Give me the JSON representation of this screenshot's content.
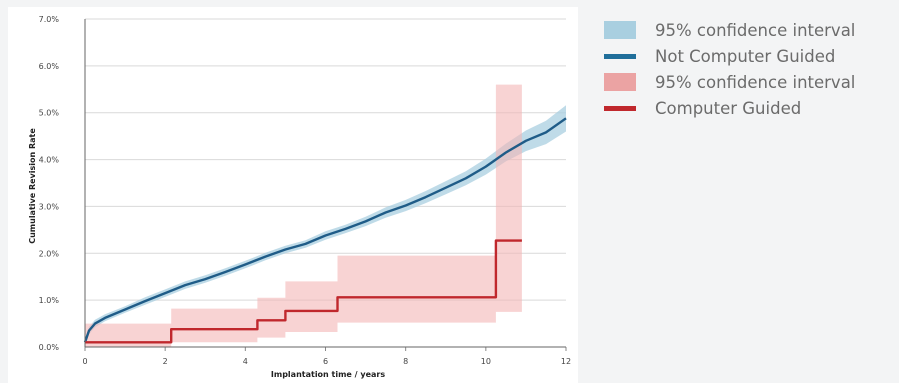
{
  "chart_data": {
    "type": "line",
    "title": "",
    "xlabel": "Implantation time  / years",
    "ylabel": "Cumulative Revision Rate",
    "xlim": [
      0,
      12
    ],
    "ylim": [
      0,
      7
    ],
    "x_ticks": [
      0,
      2,
      4,
      6,
      8,
      10,
      12
    ],
    "x_tick_labels": [
      "0",
      "2",
      "4",
      "6",
      "8",
      "10",
      "12"
    ],
    "y_ticks": [
      0,
      1,
      2,
      3,
      4,
      5,
      6,
      7
    ],
    "y_tick_labels": [
      "0.0%",
      "1.0%",
      "2.0%",
      "3.0%",
      "4.0%",
      "5.0%",
      "6.0%",
      "7.0%"
    ],
    "grid": "horizontal",
    "legend_position": "right",
    "series": [
      {
        "name": "Not Computer Guided",
        "kind": "line",
        "color": "#1f5c88",
        "x": [
          0,
          0.1,
          0.25,
          0.5,
          1,
          1.5,
          2,
          2.5,
          3,
          3.5,
          4,
          4.5,
          5,
          5.5,
          6,
          6.5,
          7,
          7.5,
          8,
          8.5,
          9,
          9.5,
          10,
          10.5,
          11,
          11.5,
          12
        ],
        "y": [
          0.1,
          0.35,
          0.5,
          0.62,
          0.8,
          0.98,
          1.15,
          1.32,
          1.45,
          1.6,
          1.76,
          1.93,
          2.08,
          2.2,
          2.38,
          2.52,
          2.68,
          2.87,
          3.02,
          3.2,
          3.4,
          3.6,
          3.85,
          4.15,
          4.4,
          4.58,
          4.88
        ]
      },
      {
        "name": "95% confidence interval",
        "kind": "band",
        "color": "#a9cfe0",
        "x": [
          0,
          0.1,
          0.25,
          0.5,
          1,
          1.5,
          2,
          2.5,
          3,
          3.5,
          4,
          4.5,
          5,
          5.5,
          6,
          6.5,
          7,
          7.5,
          8,
          8.5,
          9,
          9.5,
          10,
          10.5,
          11,
          11.5,
          12
        ],
        "lower": [
          0.05,
          0.27,
          0.42,
          0.55,
          0.73,
          0.9,
          1.07,
          1.24,
          1.37,
          1.52,
          1.68,
          1.85,
          2.0,
          2.12,
          2.29,
          2.43,
          2.58,
          2.76,
          2.9,
          3.07,
          3.26,
          3.45,
          3.68,
          3.96,
          4.18,
          4.33,
          4.6
        ],
        "upper": [
          0.15,
          0.43,
          0.58,
          0.7,
          0.87,
          1.06,
          1.23,
          1.4,
          1.53,
          1.68,
          1.84,
          2.01,
          2.16,
          2.28,
          2.47,
          2.61,
          2.78,
          2.98,
          3.14,
          3.33,
          3.54,
          3.75,
          4.02,
          4.34,
          4.62,
          4.83,
          5.16
        ]
      },
      {
        "name": "Computer Guided",
        "kind": "step",
        "color": "#c0282d",
        "x": [
          0,
          2.15,
          4.3,
          5.0,
          6.3,
          10.25,
          10.9
        ],
        "y": [
          0.1,
          0.38,
          0.57,
          0.77,
          1.06,
          2.27,
          2.27
        ]
      },
      {
        "name": "95% confidence interval",
        "kind": "step-band",
        "color": "#f4b5b5",
        "x": [
          0,
          2.15,
          4.3,
          5.0,
          6.3,
          10.25,
          10.9
        ],
        "lower": [
          0.0,
          0.1,
          0.2,
          0.32,
          0.52,
          0.75,
          0.75
        ],
        "upper": [
          0.5,
          0.82,
          1.05,
          1.4,
          1.95,
          5.6,
          5.6
        ]
      }
    ]
  },
  "legend": [
    {
      "label": "95% confidence interval",
      "swatch": "band",
      "color": "#a9cfe0"
    },
    {
      "label": "Not Computer Guided",
      "swatch": "line",
      "color": "#1f6e9a"
    },
    {
      "label": "95% confidence interval",
      "swatch": "band",
      "color": "#eba3a3"
    },
    {
      "label": "Computer Guided",
      "swatch": "line",
      "color": "#c0282d"
    }
  ]
}
